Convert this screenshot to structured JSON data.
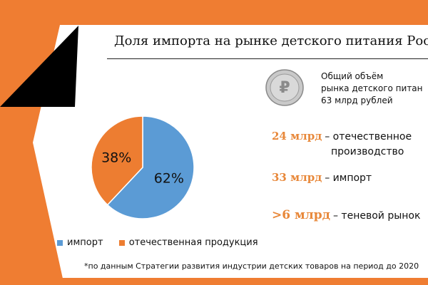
{
  "colors": {
    "accent": "#ef7d32",
    "import_series": "#5b9bd5",
    "domestic_series": "#ed7d31",
    "value_text": "#e8883a",
    "dark_band": "#000000"
  },
  "title": "Доля импорта на рынке детского питания Росс",
  "total": {
    "icon": "ruble-coin-icon",
    "lines": [
      "Общий объём",
      "рынка детского питан",
      "63 млрд рублей"
    ]
  },
  "stats": [
    {
      "value": "24 млрд",
      "desc_line1": "– отечественное",
      "desc_line2": "производство"
    },
    {
      "value": "33 млрд",
      "desc_line1": "– импорт"
    },
    {
      "value": ">6 млрд",
      "desc_line1": "– теневой рынок"
    }
  ],
  "chart_data": {
    "type": "pie",
    "title": "",
    "categories": [
      "импорт",
      "отечественная продукция"
    ],
    "values": [
      62,
      38
    ],
    "value_labels": [
      "62%",
      "38%"
    ],
    "colors": [
      "#5b9bd5",
      "#ed7d31"
    ],
    "legend": {
      "position": "bottom",
      "entries": [
        "импорт",
        "отечественная продукция"
      ]
    }
  },
  "footnote": "*по данным Стратегии развития индустрии детских товаров на период до 2020"
}
